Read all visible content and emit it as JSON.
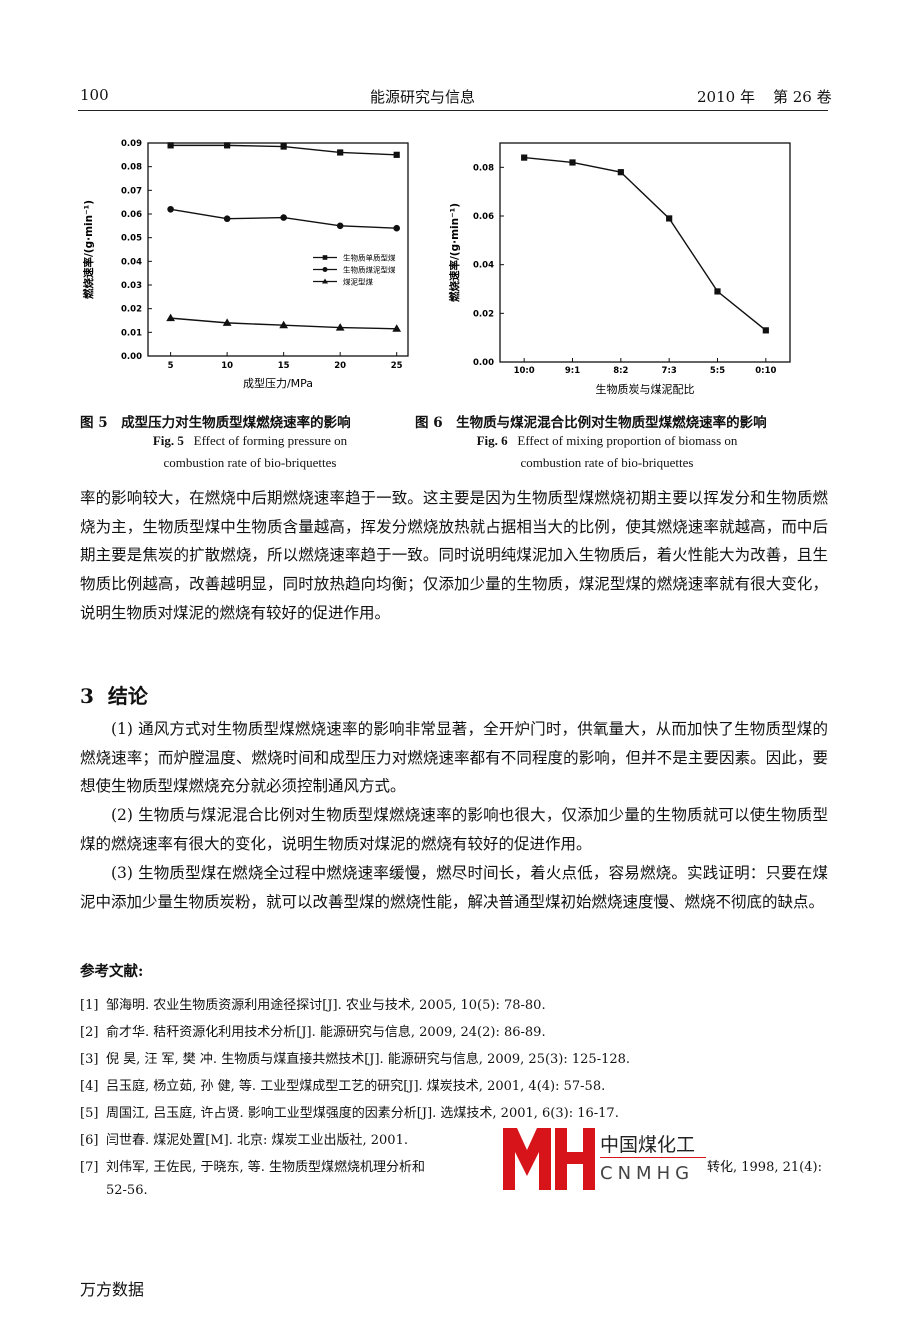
{
  "header": {
    "page": "100",
    "journal": "能源研究与信息",
    "year": "2010 年",
    "volume": "第 26 卷"
  },
  "chart_data": [
    {
      "type": "line",
      "x_label": "成型压力/MPa",
      "y_label": "燃烧速率/(g·min⁻¹)",
      "x": [
        5,
        10,
        15,
        20,
        25
      ],
      "xlim": [
        3,
        26
      ],
      "xticks": [
        5,
        10,
        15,
        20,
        25
      ],
      "ylim": [
        0,
        0.09
      ],
      "yticks": [
        {
          "value": 0,
          "label": "0.00"
        },
        {
          "value": 0.01,
          "label": "0.01"
        },
        {
          "value": 0.02,
          "label": "0.02"
        },
        {
          "value": 0.03,
          "label": "0.03"
        },
        {
          "value": 0.04,
          "label": "0.04"
        },
        {
          "value": 0.05,
          "label": "0.05"
        },
        {
          "value": 0.06,
          "label": "0.06"
        },
        {
          "value": 0.07,
          "label": "0.07"
        },
        {
          "value": 0.08,
          "label": "0.08"
        },
        {
          "value": 0.09,
          "label": "0.09"
        }
      ],
      "legend": "center-right",
      "series": [
        {
          "name": "生物质单质型煤",
          "color": "#111111",
          "marker": "square",
          "values": [
            0.089,
            0.089,
            0.0885,
            0.086,
            0.085
          ]
        },
        {
          "name": "生物质煤泥型煤",
          "color": "#111111",
          "marker": "circle",
          "values": [
            0.062,
            0.058,
            0.0585,
            0.055,
            0.054
          ]
        },
        {
          "name": "煤泥型煤",
          "color": "#111111",
          "marker": "triangle",
          "values": [
            0.016,
            0.014,
            0.013,
            0.012,
            0.0115
          ]
        }
      ]
    },
    {
      "type": "line",
      "x_label": "生物质炭与煤泥配比",
      "y_label": "燃烧速率/(g·min⁻¹)",
      "categories": [
        "10:0",
        "9:1",
        "8:2",
        "7:3",
        "5:5",
        "0:10"
      ],
      "values": [
        0.084,
        0.082,
        0.078,
        0.059,
        0.029,
        0.013
      ],
      "color": "#111111",
      "marker": "square",
      "ylim": [
        0,
        0.09
      ],
      "yticks": [
        {
          "value": 0,
          "label": "0.00"
        },
        {
          "value": 0.02,
          "label": "0.02"
        },
        {
          "value": 0.04,
          "label": "0.04"
        },
        {
          "value": 0.06,
          "label": "0.06"
        },
        {
          "value": 0.08,
          "label": "0.08"
        }
      ]
    }
  ],
  "captions": [
    {
      "label_cn": "图 5",
      "title_cn": "成型压力对生物质型煤燃烧速率的影响",
      "label_en": "Fig. 5",
      "title_en": [
        "Effect of forming pressure on",
        "combustion rate of bio-briquettes"
      ]
    },
    {
      "label_cn": "图 6",
      "title_cn": "生物质与煤泥混合比例对生物质型煤燃烧速率的影响",
      "label_en": "Fig. 6",
      "title_en": [
        "Effect of mixing proportion of biomass on",
        "combustion rate of bio-briquettes"
      ]
    }
  ],
  "body": {
    "paragraphs": [
      "率的影响较大，在燃烧中后期燃烧速率趋于一致。这主要是因为生物质型煤燃烧初期主要以挥发分和生物质燃烧为主，生物质型煤中生物质含量越高，挥发分燃烧放热就占据相当大的比例，使其燃烧速率就越高，而中后期主要是焦炭的扩散燃烧，所以燃烧速率趋于一致。同时说明纯煤泥加入生物质后，着火性能大为改善，且生物质比例越高，改善越明显，同时放热趋向均衡；仅添加少量的生物质，煤泥型煤的燃烧速率就有很大变化，说明生物质对煤泥的燃烧有较好的促进作用。"
    ],
    "section": {
      "number": "3",
      "title": "结论",
      "paragraphs": [
        "(1) 通风方式对生物质型煤燃烧速率的影响非常显著，全开炉门时，供氧量大，从而加快了生物质型煤的燃烧速率；而炉膛温度、燃烧时间和成型压力对燃烧速率都有不同程度的影响，但并不是主要因素。因此，要想使生物质型煤燃烧充分就必须控制通风方式。",
        "(2) 生物质与煤泥混合比例对生物质型煤燃烧速率的影响也很大，仅添加少量的生物质就可以使生物质型煤的燃烧速率有很大的变化，说明生物质对煤泥的燃烧有较好的促进作用。",
        "(3) 生物质型煤在燃烧全过程中燃烧速率缓慢，燃尽时间长，着火点低，容易燃烧。实践证明：只要在煤泥中添加少量生物质炭粉，就可以改善型煤的燃烧性能，解决普通型煤初始燃烧速度慢、燃烧不彻底的缺点。"
      ]
    }
  },
  "references": {
    "title": "参考文献:",
    "items": [
      {
        "number": "[1]",
        "text": "邹海明. 农业生物质资源利用途径探讨[J]. 农业与技术, 2005, 10(5): 78-80."
      },
      {
        "number": "[2]",
        "text": "俞才华. 秸秆资源化利用技术分析[J]. 能源研究与信息, 2009, 24(2): 86-89."
      },
      {
        "number": "[3]",
        "text": "倪 昊, 汪 军, 樊 冲. 生物质与煤直接共燃技术[J]. 能源研究与信息, 2009, 25(3): 125-128."
      },
      {
        "number": "[4]",
        "text": "吕玉庭, 杨立茹, 孙 健, 等. 工业型煤成型工艺的研究[J]. 煤炭技术, 2001, 4(4): 57-58."
      },
      {
        "number": "[5]",
        "text": "周国江, 吕玉庭, 许占贤. 影响工业型煤强度的因素分析[J]. 选煤技术, 2001, 6(3): 16-17."
      },
      {
        "number": "[6]",
        "text": "闫世春. 煤泥处置[M]. 北京: 煤炭工业出版社, 2001."
      },
      {
        "number": "[7]",
        "text": "刘伟军, 王佐民, 于晓东, 等. 生物质型煤燃烧机理分析和",
        "text_end": "转化, 1998, 21(4):",
        "continuation": "52-56."
      }
    ]
  },
  "watermark": {
    "cn": "中国煤化工",
    "en": "CNMHG"
  },
  "footer": "万方数据"
}
